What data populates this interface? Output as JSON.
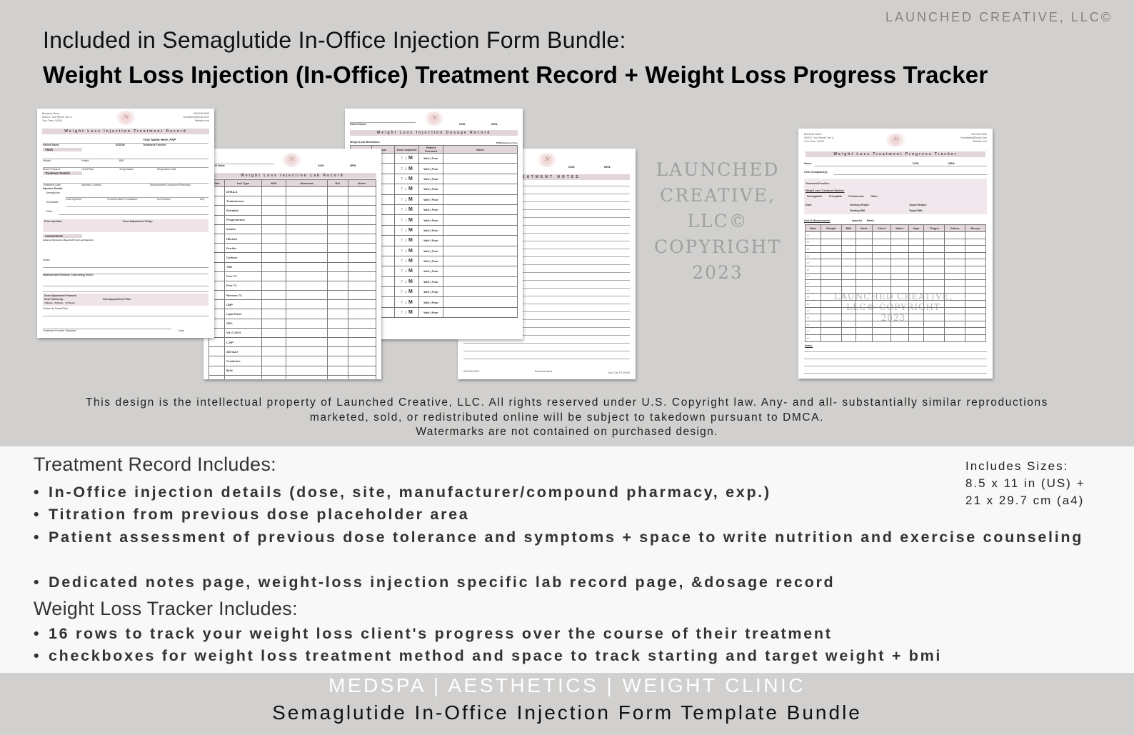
{
  "header": {
    "brand": "LAUNCHED CREATIVE, LLC©",
    "line1": "Included in Semaglutide In-Office Injection Form Bundle:",
    "line2": "Weight Loss Injection (In-Office) Treatment Record + Weight Loss Progress Tracker"
  },
  "business": {
    "name": "Business Name",
    "street": "0000 S. Your Street, Ste. A",
    "town": "Your Town, 00000",
    "phone": "000-000-0000",
    "email": "YourName@Email.Com",
    "website": "Website.com",
    "city": "Your City, ST 00000"
  },
  "treatment_record": {
    "title": "Weight Loss Injection Treatment Record",
    "provider_name": "Your Name Here, FNP",
    "patient_name": "Patient Name",
    "id_dob": "ID/DOB",
    "treatment_provider": "Treatment Provider",
    "vitals": "Vitals",
    "weight": "Weight",
    "height": "Height",
    "bmi": "BMI",
    "blood_pressure": "Blood Pressure",
    "heart_rate": "Heart Rate",
    "temperature": "Temperature",
    "respiration": "Respiration Rate",
    "treatment_details": "Treatment Details",
    "treatment_date": "Treatment Date",
    "injection_location": "Injection Location",
    "manufacturer": "Manufacturer/Compound Pharmacy",
    "injection_details": "Injection Details",
    "semaglutide": "Semaglutide",
    "tirzepatide": "Tirzepatide",
    "other": "Other:",
    "dose_injected": "Dose Injected",
    "concentration": "Concentration/Formulation",
    "lot": "Lot Number",
    "exp": "Exp.",
    "prior_injection": "Prior Injection:",
    "dose_adjustment_today": "Dose Adjustment Today:",
    "assessment": "Assessment",
    "adverse": "Adverse Symptoms Reported From Last Injection:",
    "notes": "Notes:",
    "nutrition": "Nutrition and Exercise Counseling Given:",
    "dose_planned": "Dose Adjustment Planned:",
    "next_follow_up": "Next Follow-Up",
    "follow_up_options": [
      "4 Weeks",
      "8 Weeks",
      "12 Weeks"
    ],
    "next_appointment": "Next Appointment Plan",
    "follow_up_notes": "Follow-Up Notes/Plan:",
    "signature": "Treatment Provider Signature",
    "date": "Date"
  },
  "lab_record": {
    "title": "Weight Loss Injection Lab Record",
    "patient_name": "Patient Name",
    "dob": "DOB:",
    "mrn": "MRN:",
    "columns": [
      "Date",
      "Lab Type",
      "WNL",
      "Abnormal",
      "N/A",
      "Notes"
    ],
    "lab_types": [
      "DHEA-S",
      "Testosterone",
      "Estradiol",
      "Progesterone",
      "Insulin",
      "HB-A1C",
      "Ferritin",
      "Cortisol",
      "TSH",
      "Free T3",
      "Free T4",
      "Reverse T3",
      "CMP",
      "Lipid Panel",
      "CBC",
      "Vit. D 25-H",
      "C-RP",
      "AST/ALT",
      "Creatinine",
      "BUN",
      "",
      "",
      ""
    ]
  },
  "dosage_record": {
    "title": "Weight Loss Injection Dosage Record",
    "patient_name": "Patient Name",
    "dob": "DOB:",
    "mrn": "MRN:",
    "medication": "Weight Loss Medication:",
    "maintenance": "M*Maintenance Dose",
    "columns": [
      "",
      "Dose",
      "Dose Adjusted",
      "Patient Tolerated",
      "Notes"
    ],
    "adjusted": "↑ ↓ M",
    "tolerated": "Well | Poor",
    "row_count": 16
  },
  "notes_page": {
    "title": "TREATMENT NOTES",
    "dob": "DOB:",
    "mrn": "MRN:"
  },
  "tracker": {
    "title": "Weight Loss Treatment Progress Tracker",
    "name": "Name:",
    "dob": "DOB:",
    "mrn": "MRN:",
    "chief_complaint": "Chief Complaint(s):",
    "provider": "Treatment Provider:",
    "method": "Weight Loss Treatment Method:",
    "methods": [
      "Semaglutide",
      "Tirzepatide",
      "Phentermine",
      "Other:"
    ],
    "date": "Date:",
    "starting_weight": "Starting Weight:",
    "starting_bmi": "Starting BMI:",
    "target_weight": "Target Weight:",
    "target_bmi": "Target BMI:",
    "unit": "Unit of Measurement:",
    "units": [
      "Imperial",
      "Metric"
    ],
    "columns": [
      "Date",
      "Weight",
      "BMI",
      "Neck",
      "Chest",
      "Waist",
      "Hips",
      "Thighs",
      "Calves",
      "Biceps"
    ],
    "row_count": 16,
    "notes": "Notes:"
  },
  "watermark": {
    "main": "LAUNCHED CREATIVE, LLC© COPYRIGHT 2023",
    "tracker": [
      "LAUNCHED CREATIVE,",
      "LLC© COPYRIGHT",
      "2023"
    ]
  },
  "legal": {
    "line1": "This design is the intellectual property of Launched Creative, LLC. All rights reserved under U.S. Copyright law. Any- and all- substantially similar reproductions",
    "line2": "marketed, sold, or redistributed online will be subject to takedown pursuant to DMCA.",
    "line3": "Watermarks are not contained on purchased design."
  },
  "features": {
    "treatment_heading": "Treatment Record Includes:",
    "treatment_items": [
      "In-Office injection details (dose, site, manufacturer/compound pharmacy, exp.)",
      "Titration from previous dose placeholder area",
      "Patient assessment of previous dose tolerance and symptoms + space to write nutrition and exercise counseling",
      "Dedicated notes page, weight-loss injection specific lab record page, &dosage record"
    ],
    "tracker_heading": "Weight Loss Tracker Includes:",
    "tracker_items": [
      "16 rows to track your weight loss client's progress over the course of their treatment",
      "checkboxes for weight loss treatment method and space to track starting and target weight + bmi"
    ],
    "sizes_label": "Includes Sizes:",
    "size_us": "8.5 x 11 in (US) +",
    "size_a4": "21 x 29.7 cm (a4)"
  },
  "footer": {
    "tagline": "MEDSPA | AESTHETICS | WEIGHT CLINIC",
    "bundle": "Semaglutide In-Office Injection Form Template Bundle"
  },
  "colors": {
    "accent_band": "#e2d6dc",
    "background": "#d1d0ce",
    "panel": "#f8f8f8"
  }
}
